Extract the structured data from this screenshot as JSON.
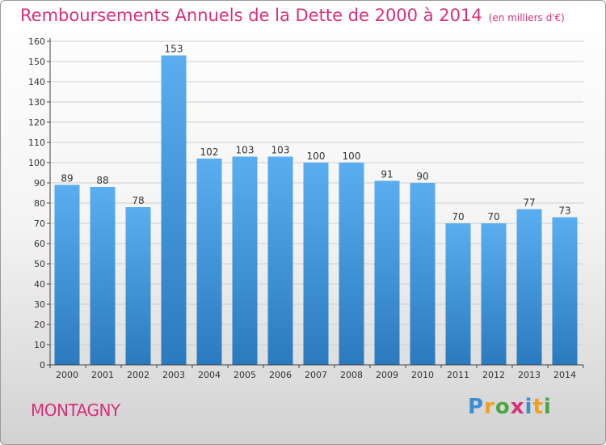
{
  "header": {
    "title": "Remboursements Annuels de la Dette de 2000 à 2014",
    "unit": "(en milliers d'€)"
  },
  "footer": {
    "town": "MONTAGNY",
    "logo": "Proxiti"
  },
  "colors": {
    "bar_light": "#5aaef0",
    "bar_dark": "#2a7ac0",
    "title": "#d6317a",
    "grid": "#cfcfcf"
  },
  "chart_data": {
    "type": "bar",
    "title": "Remboursements Annuels de la Dette de 2000 à 2014",
    "xlabel": "",
    "ylabel": "",
    "ylim": [
      0,
      160
    ],
    "yticks": [
      0,
      10,
      20,
      30,
      40,
      50,
      60,
      70,
      80,
      90,
      100,
      110,
      120,
      130,
      140,
      150,
      160
    ],
    "grid": true,
    "categories": [
      "2000",
      "2001",
      "2002",
      "2003",
      "2004",
      "2005",
      "2006",
      "2007",
      "2008",
      "2009",
      "2010",
      "2011",
      "2012",
      "2013",
      "2014"
    ],
    "values": [
      89,
      88,
      78,
      153,
      102,
      103,
      103,
      100,
      100,
      91,
      90,
      70,
      70,
      77,
      73
    ],
    "data_labels": [
      "89",
      "88",
      "78",
      "153",
      "102",
      "103",
      "103",
      "100",
      "100",
      "91",
      "90",
      "70",
      "70",
      "77",
      "73"
    ]
  }
}
